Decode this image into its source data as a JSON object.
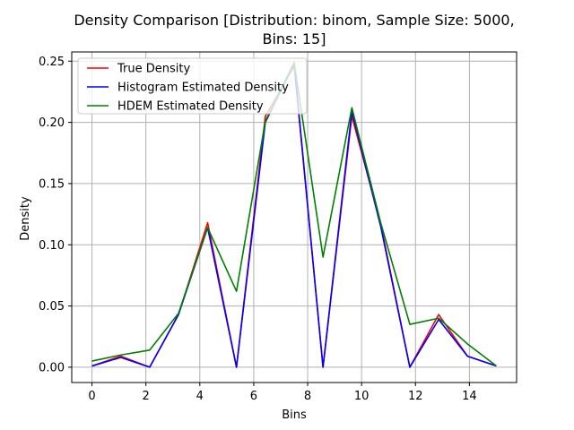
{
  "chart_data": {
    "type": "line",
    "title_line1": "Density Comparison [Distribution: binom, Sample Size: 5000,",
    "title_line2": "Bins: 15]",
    "xlabel": "Bins",
    "ylabel": "Density",
    "xlim": [
      -0.75,
      15.75
    ],
    "ylim": [
      -0.0125,
      0.2575
    ],
    "xticks": [
      0,
      2,
      4,
      6,
      8,
      10,
      12,
      14
    ],
    "xtick_labels": [
      "0",
      "2",
      "4",
      "6",
      "8",
      "10",
      "12",
      "14"
    ],
    "yticks": [
      0.0,
      0.05,
      0.1,
      0.15,
      0.2,
      0.25
    ],
    "ytick_labels": [
      "0.00",
      "0.05",
      "0.10",
      "0.15",
      "0.20",
      "0.25"
    ],
    "grid": true,
    "legend_position": "top-left",
    "x": [
      0,
      1.07,
      2.14,
      3.21,
      4.29,
      5.36,
      6.43,
      7.5,
      8.57,
      9.64,
      10.71,
      11.79,
      12.86,
      13.93,
      15
    ],
    "series": [
      {
        "name": "True Density",
        "color": "#ff0000",
        "values": [
          0.001,
          0.009,
          0.0,
          0.043,
          0.118,
          0.0,
          0.205,
          0.246,
          0.0,
          0.205,
          0.117,
          0.0,
          0.043,
          0.009,
          0.001
        ]
      },
      {
        "name": "Histogram Estimated Density",
        "color": "#0000ff",
        "values": [
          0.001,
          0.008,
          0.0,
          0.043,
          0.114,
          0.0,
          0.2,
          0.248,
          0.0,
          0.209,
          0.115,
          0.0,
          0.039,
          0.009,
          0.001
        ]
      },
      {
        "name": "HDEM Estimated Density",
        "color": "#008000",
        "values": [
          0.005,
          0.01,
          0.014,
          0.044,
          0.114,
          0.062,
          0.201,
          0.249,
          0.09,
          0.212,
          0.118,
          0.035,
          0.04,
          0.019,
          0.001
        ]
      }
    ]
  }
}
